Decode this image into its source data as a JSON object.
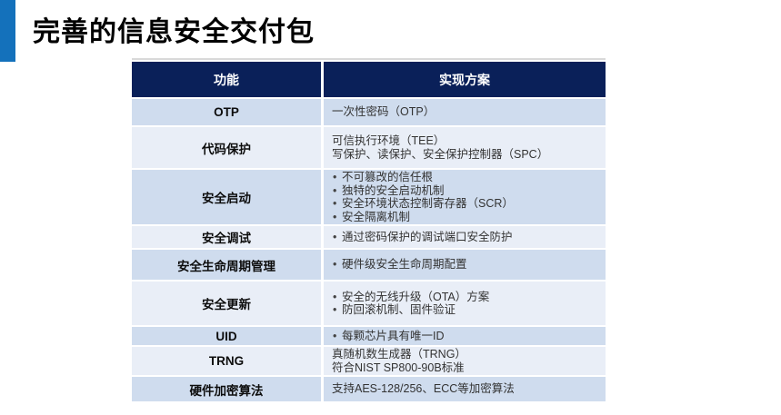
{
  "title": "完善的信息安全交付包",
  "colors": {
    "accent_bar": "#1471bb",
    "header_bg": "#0a2059",
    "row_dark": "#cfdcee",
    "row_light": "#e9eef7",
    "table_top_border": "#d9d9d9",
    "header_text": "#ffffff"
  },
  "table": {
    "headers": [
      "功能",
      "实现方案"
    ],
    "rows": [
      {
        "feature": "OTP",
        "solutions": [
          {
            "bullet": false,
            "text": "一次性密码（OTP）"
          }
        ]
      },
      {
        "feature": "代码保护",
        "solutions": [
          {
            "bullet": false,
            "text": "可信执行环境（TEE）"
          },
          {
            "bullet": false,
            "text": "写保护、读保护、安全保护控制器（SPC）"
          }
        ]
      },
      {
        "feature": "安全启动",
        "solutions": [
          {
            "bullet": true,
            "text": "不可篡改的信任根"
          },
          {
            "bullet": true,
            "text": "独特的安全启动机制"
          },
          {
            "bullet": true,
            "text": "安全环境状态控制寄存器（SCR）"
          },
          {
            "bullet": true,
            "text": "安全隔离机制"
          }
        ]
      },
      {
        "feature": "安全调试",
        "solutions": [
          {
            "bullet": true,
            "text": "通过密码保护的调试端口安全防护"
          }
        ]
      },
      {
        "feature": "安全生命周期管理",
        "solutions": [
          {
            "bullet": true,
            "text": "硬件级安全生命周期配置"
          }
        ]
      },
      {
        "feature": "安全更新",
        "solutions": [
          {
            "bullet": true,
            "text": "安全的无线升级（OTA）方案"
          },
          {
            "bullet": true,
            "text": "防回滚机制、固件验证"
          }
        ]
      },
      {
        "feature": "UID",
        "solutions": [
          {
            "bullet": true,
            "text": "每颗芯片具有唯一ID"
          }
        ]
      },
      {
        "feature": "TRNG",
        "solutions": [
          {
            "bullet": false,
            "text": "真随机数生成器（TRNG）"
          },
          {
            "bullet": false,
            "text": "符合NIST SP800-90B标准"
          }
        ]
      },
      {
        "feature": "硬件加密算法",
        "solutions": [
          {
            "bullet": false,
            "text": "支持AES-128/256、ECC等加密算法"
          }
        ]
      }
    ]
  }
}
